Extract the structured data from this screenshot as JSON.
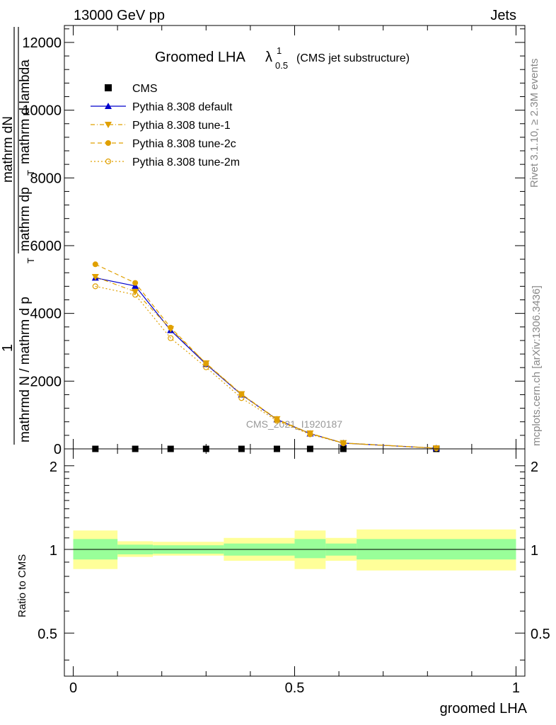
{
  "header": {
    "left": "13000 GeV pp",
    "right": "Jets"
  },
  "title": {
    "main": "Groomed LHA",
    "lambda": "λ",
    "sup": "1",
    "sub": "0.5",
    "suffix": "(CMS jet substructure)"
  },
  "side_text": {
    "rivet": "Rivet 3.1.10, ≥ 2.3M events",
    "mcplots": "mcplots.cern.ch [arXiv:1306.3436]"
  },
  "watermark": "CMS_2021_I1920187",
  "ylabel_main": {
    "numerator_1": "1",
    "numerator_2": "mathrm dN",
    "denominator": "mathrmd N / mathrm d p",
    "denominator_sub": "T",
    "numerator_2b": "mathrm d p",
    "numerator_2b_sub": "T",
    "numerator_2c": "mathrm d lambda",
    "numerator_2b_prefix": "mathrm dp"
  },
  "ylabel_ratio": "Ratio to CMS",
  "xlabel": "groomed LHA",
  "chart_data": [
    {
      "type": "line",
      "panel": "main",
      "xlim": [
        -0.02,
        1.02
      ],
      "ylim": [
        0,
        12500
      ],
      "yticks": [
        0,
        2000,
        4000,
        6000,
        8000,
        10000,
        12000
      ],
      "ytick_labels": [
        "0",
        "2000",
        "4000",
        "6000",
        "8000",
        "10000",
        "12000"
      ],
      "x": [
        0.05,
        0.14,
        0.22,
        0.3,
        0.38,
        0.46,
        0.535,
        0.61,
        0.82
      ],
      "series": [
        {
          "name": "CMS",
          "color": "#000000",
          "marker": "square",
          "values": [
            0,
            0,
            0,
            0,
            0,
            0,
            0,
            0,
            0
          ]
        },
        {
          "name": "Pythia 8.308 default",
          "color": "#0000cc",
          "marker": "triangle-up",
          "line": "solid",
          "values": [
            5050,
            4810,
            3500,
            2500,
            1600,
            870,
            450,
            170,
            20
          ]
        },
        {
          "name": "Pythia 8.308 tune-1",
          "color": "#e0a000",
          "marker": "triangle-down",
          "line": "dashdot",
          "values": [
            5080,
            4640,
            3540,
            2530,
            1620,
            880,
            460,
            175,
            22
          ]
        },
        {
          "name": "Pythia 8.308 tune-2c",
          "color": "#e0a000",
          "marker": "circle-filled",
          "line": "dashed",
          "values": [
            5450,
            4900,
            3580,
            2520,
            1610,
            860,
            450,
            170,
            20
          ]
        },
        {
          "name": "Pythia 8.308 tune-2m",
          "color": "#e0a000",
          "marker": "circle-open",
          "line": "dotted",
          "values": [
            4800,
            4550,
            3270,
            2410,
            1500,
            830,
            430,
            165,
            20
          ]
        }
      ]
    },
    {
      "type": "area",
      "panel": "ratio",
      "xlim": [
        -0.02,
        1.02
      ],
      "ylim": [
        0.35,
        2.3
      ],
      "log_scale": true,
      "yticks": [
        0.5,
        1,
        2
      ],
      "ytick_labels": [
        "0.5",
        "1",
        "2"
      ],
      "xticks": [
        0,
        0.5,
        1
      ],
      "xtick_labels": [
        "0",
        "0.5",
        "1"
      ],
      "reference_line": 1,
      "bands": [
        {
          "x0": 0.0,
          "x1": 0.1,
          "inner": [
            0.92,
            1.09
          ],
          "outer": [
            0.85,
            1.17
          ]
        },
        {
          "x0": 0.1,
          "x1": 0.18,
          "inner": [
            0.96,
            1.04
          ],
          "outer": [
            0.94,
            1.07
          ]
        },
        {
          "x0": 0.18,
          "x1": 0.34,
          "inner": [
            0.965,
            1.035
          ],
          "outer": [
            0.95,
            1.065
          ]
        },
        {
          "x0": 0.34,
          "x1": 0.5,
          "inner": [
            0.95,
            1.05
          ],
          "outer": [
            0.91,
            1.1
          ]
        },
        {
          "x0": 0.5,
          "x1": 0.57,
          "inner": [
            0.93,
            1.09
          ],
          "outer": [
            0.85,
            1.17
          ]
        },
        {
          "x0": 0.57,
          "x1": 0.64,
          "inner": [
            0.95,
            1.05
          ],
          "outer": [
            0.91,
            1.1
          ]
        },
        {
          "x0": 0.64,
          "x1": 1.0,
          "inner": [
            0.92,
            1.09
          ],
          "outer": [
            0.84,
            1.18
          ]
        }
      ],
      "band_colors": {
        "inner": "#99ff99",
        "outer": "#ffff99"
      }
    }
  ]
}
